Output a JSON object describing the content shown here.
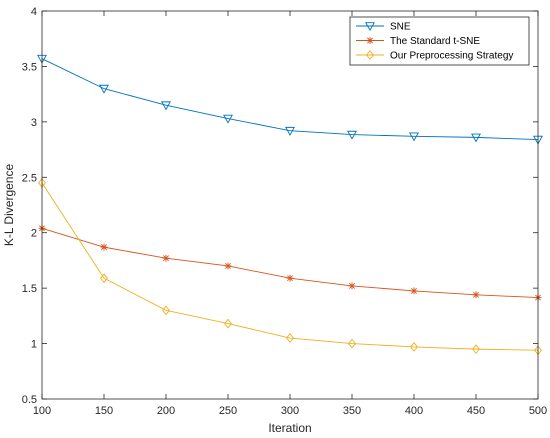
{
  "chart_data": {
    "type": "line",
    "xlabel": "Iteration",
    "ylabel": "K-L Divergence",
    "xlim": [
      100,
      500
    ],
    "ylim": [
      0.5,
      4
    ],
    "xticks": [
      100,
      150,
      200,
      250,
      300,
      350,
      400,
      450,
      500
    ],
    "yticks": [
      0.5,
      1,
      1.5,
      2,
      2.5,
      3,
      3.5,
      4
    ],
    "x": [
      100,
      150,
      200,
      250,
      300,
      350,
      400,
      450,
      500
    ],
    "grid": false,
    "legend_position": "top-right",
    "series": [
      {
        "name": "SNE",
        "values": [
          3.57,
          3.3,
          3.15,
          3.03,
          2.92,
          2.885,
          2.87,
          2.86,
          2.84
        ],
        "color": "#0072BD",
        "marker": "triangle-down"
      },
      {
        "name": "The Standard t-SNE",
        "values": [
          2.04,
          1.87,
          1.77,
          1.7,
          1.59,
          1.52,
          1.475,
          1.44,
          1.415
        ],
        "color": "#D95319",
        "marker": "asterisk"
      },
      {
        "name": "Our Preprocessing Strategy",
        "values": [
          2.45,
          1.59,
          1.3,
          1.18,
          1.05,
          1.0,
          0.97,
          0.95,
          0.94
        ],
        "color": "#EDB120",
        "marker": "diamond"
      }
    ]
  }
}
